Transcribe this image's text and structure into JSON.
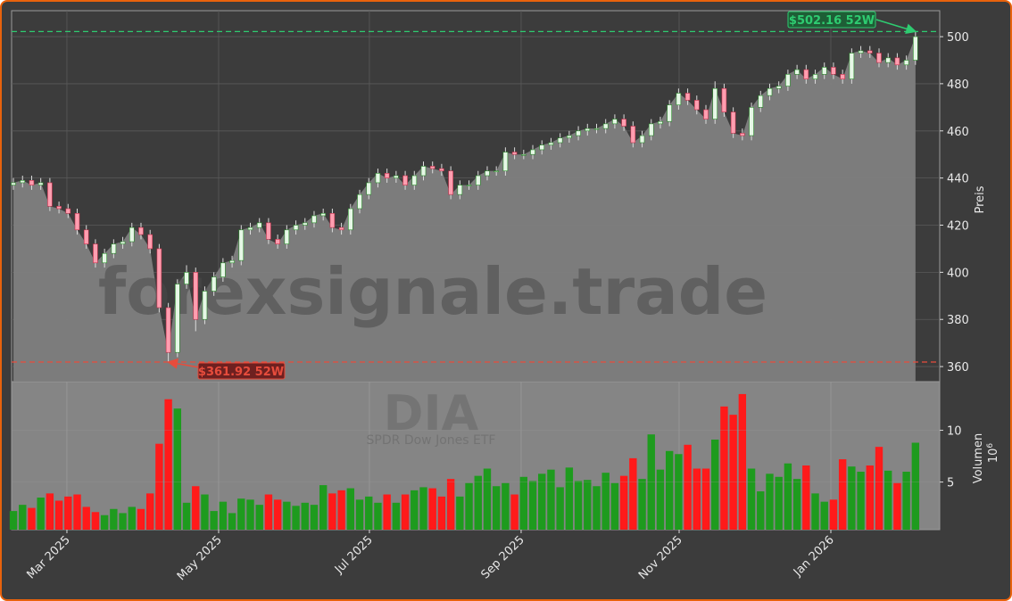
{
  "chart_data": {
    "type": "candlestick",
    "categories": [
      null,
      null,
      null,
      null,
      null,
      null,
      null,
      null,
      null,
      null,
      null,
      null,
      null,
      null,
      null,
      null,
      null,
      null,
      null,
      null,
      null,
      null,
      null,
      null,
      null,
      null,
      null,
      null,
      null,
      null,
      null,
      null,
      null,
      null,
      null,
      null,
      null,
      null,
      null,
      null,
      null,
      null,
      null,
      null,
      null,
      null,
      null,
      null,
      null,
      null,
      null,
      null,
      null,
      null,
      null,
      null,
      null,
      null,
      null,
      null,
      null,
      null,
      null,
      null,
      null,
      null,
      null,
      null,
      null,
      null,
      null,
      null,
      null,
      null,
      null,
      null,
      null,
      null,
      null,
      null,
      null,
      null,
      null,
      null,
      null,
      null,
      null,
      null,
      null,
      null,
      null,
      null,
      null,
      null,
      null,
      null,
      null,
      null,
      null,
      null
    ],
    "open": [
      437,
      438,
      439,
      437,
      438,
      428,
      427,
      425,
      418,
      412,
      404,
      408,
      412,
      413,
      419,
      416,
      410,
      385,
      366,
      395,
      400,
      380,
      392,
      398,
      404,
      405,
      418,
      419,
      421,
      414,
      412,
      418,
      420,
      421,
      424,
      425,
      419,
      418,
      427,
      433,
      438,
      442,
      440,
      441,
      437,
      441,
      445,
      444,
      443,
      433,
      437,
      437,
      441,
      443,
      443,
      451,
      450,
      450,
      452,
      454,
      455,
      457,
      458,
      460,
      461,
      461,
      463,
      465,
      462,
      455,
      458,
      463,
      464,
      471,
      476,
      473,
      469,
      465,
      478,
      468,
      459,
      458,
      470,
      475,
      478,
      479,
      484,
      486,
      482,
      484,
      487,
      484,
      482,
      493,
      494,
      493,
      489,
      491,
      488,
      490
    ],
    "high": [
      440,
      441,
      441,
      440,
      440,
      430,
      429,
      427,
      420,
      414,
      410,
      414,
      415,
      421,
      421,
      418,
      412,
      387,
      397,
      403,
      402,
      394,
      400,
      406,
      407,
      420,
      421,
      423,
      423,
      416,
      420,
      422,
      423,
      426,
      427,
      427,
      421,
      429,
      435,
      440,
      444,
      444,
      443,
      443,
      443,
      447,
      447,
      446,
      445,
      439,
      439,
      443,
      445,
      445,
      453,
      453,
      452,
      454,
      456,
      457,
      459,
      460,
      462,
      463,
      463,
      465,
      467,
      467,
      464,
      460,
      465,
      466,
      473,
      478,
      478,
      475,
      471,
      481,
      480,
      470,
      461,
      472,
      477,
      480,
      481,
      486,
      488,
      488,
      486,
      489,
      489,
      486,
      495,
      496,
      496,
      495,
      493,
      493,
      492,
      502.16
    ],
    "low": [
      435,
      436,
      435,
      435,
      426,
      425,
      423,
      416,
      410,
      402,
      402,
      406,
      410,
      411,
      414,
      408,
      383,
      361.92,
      364,
      393,
      375,
      378,
      390,
      396,
      402,
      403,
      416,
      417,
      412,
      410,
      410,
      416,
      418,
      419,
      422,
      417,
      416,
      416,
      425,
      431,
      436,
      438,
      438,
      435,
      435,
      439,
      442,
      441,
      431,
      431,
      435,
      435,
      439,
      441,
      441,
      448,
      448,
      448,
      450,
      452,
      453,
      455,
      456,
      458,
      459,
      459,
      461,
      460,
      453,
      453,
      456,
      461,
      462,
      469,
      471,
      467,
      463,
      463,
      466,
      457,
      456,
      456,
      468,
      473,
      476,
      477,
      482,
      480,
      480,
      482,
      482,
      480,
      480,
      491,
      491,
      487,
      487,
      486,
      486,
      488
    ],
    "close": [
      438,
      439,
      437,
      438,
      428,
      427,
      425,
      418,
      412,
      404,
      408,
      412,
      413,
      419,
      416,
      410,
      385,
      366,
      395,
      400,
      380,
      392,
      398,
      404,
      405,
      418,
      419,
      421,
      414,
      412,
      418,
      420,
      421,
      424,
      425,
      419,
      418,
      427,
      433,
      438,
      442,
      440,
      441,
      437,
      441,
      445,
      444,
      443,
      433,
      437,
      437,
      441,
      443,
      443,
      451,
      450,
      450,
      452,
      454,
      455,
      457,
      458,
      460,
      461,
      461,
      463,
      465,
      462,
      455,
      458,
      463,
      464,
      471,
      476,
      473,
      469,
      465,
      478,
      468,
      459,
      458,
      470,
      475,
      478,
      479,
      484,
      486,
      482,
      484,
      487,
      484,
      482,
      493,
      494,
      493,
      489,
      491,
      488,
      490,
      500
    ],
    "volume": [
      2.2,
      2.8,
      2.5,
      3.5,
      3.9,
      3.2,
      3.6,
      3.8,
      2.6,
      2.1,
      1.8,
      2.4,
      2.0,
      2.6,
      2.4,
      3.9,
      8.7,
      13.0,
      12.1,
      3.0,
      4.6,
      3.8,
      2.2,
      3.1,
      2.0,
      3.4,
      3.3,
      2.8,
      3.8,
      3.3,
      3.1,
      2.7,
      3.0,
      2.8,
      4.7,
      3.9,
      4.2,
      4.4,
      3.3,
      3.6,
      3.0,
      3.8,
      3.0,
      3.8,
      4.2,
      4.5,
      4.4,
      3.6,
      5.3,
      3.6,
      4.9,
      5.6,
      6.3,
      4.6,
      4.9,
      3.8,
      5.5,
      5.1,
      5.8,
      6.2,
      4.5,
      6.4,
      5.1,
      5.2,
      4.6,
      5.9,
      4.9,
      5.6,
      7.3,
      5.3,
      9.6,
      6.2,
      8.0,
      7.7,
      8.6,
      6.3,
      6.3,
      9.1,
      12.3,
      11.5,
      13.5,
      6.3,
      4.1,
      5.8,
      5.5,
      6.8,
      5.3,
      6.6,
      3.9,
      3.1,
      3.3,
      7.2,
      6.5,
      6.0,
      6.6,
      8.4,
      6.1,
      4.9,
      6.0,
      8.8
    ],
    "up_color": "#1e9b1e",
    "down_color": "#ff1a1a",
    "area_color": "#808080",
    "xlim": [
      -0.2,
      101.66
    ],
    "xticks": [
      {
        "value": 5.87,
        "label": "Mar 2025"
      },
      {
        "value": 22.52,
        "label": "May 2025"
      },
      {
        "value": 39.07,
        "label": "Jul 2025"
      },
      {
        "value": 55.72,
        "label": "Sep 2025"
      },
      {
        "value": 73.06,
        "label": "Nov 2025"
      },
      {
        "value": 89.71,
        "label": "Jan 2026"
      }
    ],
    "ylim": [
      353.6,
      511
    ],
    "yticks": [
      360,
      380,
      400,
      420,
      440,
      460,
      480,
      500
    ],
    "ylabel": "Preis",
    "y2lim": [
      0.4,
      14.7
    ],
    "y2ticks": [
      5,
      10
    ],
    "y2label": "Volumen",
    "y2_multiplier": "10",
    "y2_exponent": "6",
    "grid": true,
    "high_line": {
      "value": 502.16,
      "label": "$502.16 52W",
      "color": "#2ecc71"
    },
    "low_line": {
      "value": 361.92,
      "label": "$361.92 52W",
      "color": "#e74c3c"
    },
    "watermark": "forexsignale.trade",
    "symbol": "DIA",
    "symbol_name": "SPDR Dow Jones ETF"
  }
}
